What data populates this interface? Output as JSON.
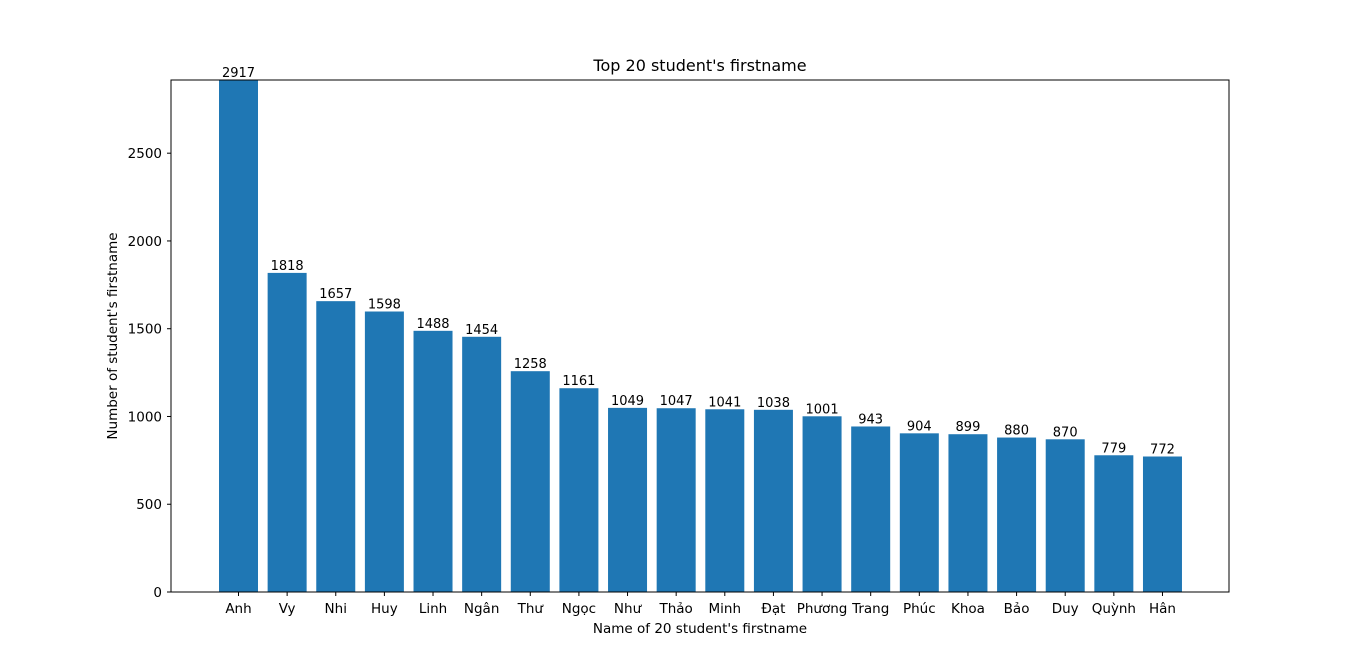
{
  "chart_data": {
    "type": "bar",
    "title": "Top 20 student's firstname",
    "xlabel": "Name of 20 student's firstname",
    "ylabel": "Number of student's firstname",
    "categories": [
      "Anh",
      "Vy",
      "Nhi",
      "Huy",
      "Linh",
      "Ngân",
      "Thư",
      "Ngọc",
      "Như",
      "Thảo",
      "Minh",
      "Đạt",
      "Phương",
      "Trang",
      "Phúc",
      "Khoa",
      "Bảo",
      "Duy",
      "Quỳnh",
      "Hân"
    ],
    "values": [
      2917,
      1818,
      1657,
      1598,
      1488,
      1454,
      1258,
      1161,
      1049,
      1047,
      1041,
      1038,
      1001,
      943,
      904,
      899,
      880,
      870,
      779,
      772
    ],
    "ylim": [
      0,
      2917
    ],
    "yticks": [
      0,
      500,
      1000,
      1500,
      2000,
      2500
    ],
    "bar_color": "#1f77b4",
    "grid": false,
    "legend": "none"
  }
}
